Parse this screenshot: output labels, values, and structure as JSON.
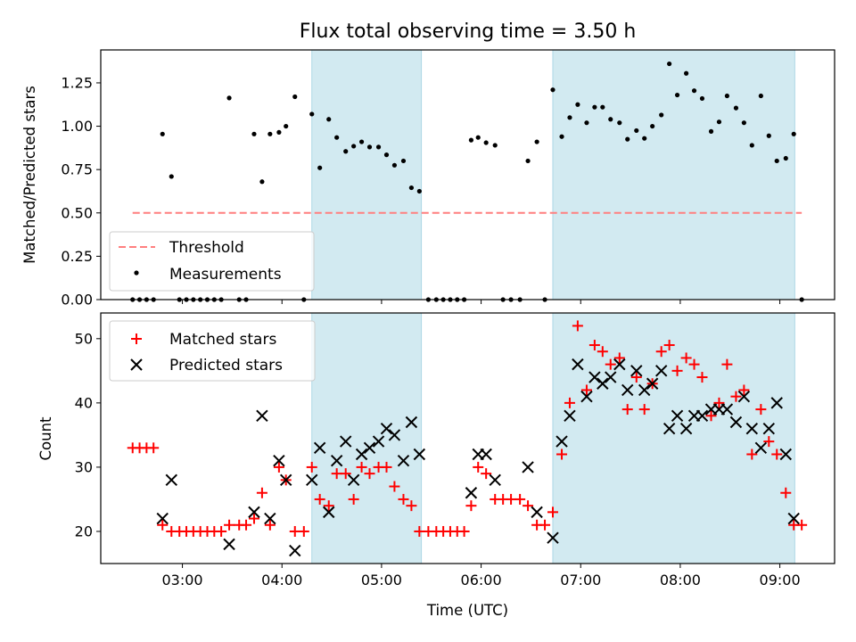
{
  "chart_data": [
    {
      "type": "scatter",
      "title": "Flux total observing time = 3.50 h",
      "xlabel": "",
      "ylabel": "Matched/Predicted stars",
      "xlim": [
        2.18,
        9.55
      ],
      "ylim": [
        0.0,
        1.44
      ],
      "yticks": [
        0.0,
        0.25,
        0.5,
        0.75,
        1.0,
        1.25
      ],
      "ytick_labels": [
        "0.00",
        "0.25",
        "0.50",
        "0.75",
        "1.00",
        "1.25"
      ],
      "xticks": [
        3,
        4,
        5,
        6,
        7,
        8,
        9
      ],
      "show_xtick_labels": false,
      "shaded_regions": [
        [
          4.3,
          5.4
        ],
        [
          6.72,
          9.15
        ]
      ],
      "shade_color": "#add8e6",
      "threshold": {
        "name": "Threshold",
        "value": 0.5,
        "x_range": [
          2.5,
          9.22
        ],
        "color": "#ff7f7f"
      },
      "legend": {
        "position": "lower-left",
        "entries": [
          "Threshold",
          "Measurements"
        ]
      },
      "series": [
        {
          "name": "Measurements",
          "color": "#000000",
          "x": [
            2.5,
            2.57,
            2.64,
            2.71,
            2.8,
            2.89,
            2.97,
            3.04,
            3.11,
            3.18,
            3.25,
            3.32,
            3.39,
            3.47,
            3.57,
            3.64,
            3.72,
            3.8,
            3.88,
            3.97,
            4.04,
            4.13,
            4.22,
            4.3,
            4.38,
            4.47,
            4.55,
            4.64,
            4.72,
            4.8,
            4.88,
            4.97,
            5.05,
            5.13,
            5.22,
            5.3,
            5.38,
            5.47,
            5.55,
            5.62,
            5.69,
            5.76,
            5.83,
            5.9,
            5.97,
            6.05,
            6.14,
            6.22,
            6.3,
            6.39,
            6.47,
            6.56,
            6.64,
            6.72,
            6.81,
            6.89,
            6.97,
            7.06,
            7.14,
            7.22,
            7.3,
            7.39,
            7.47,
            7.56,
            7.64,
            7.72,
            7.81,
            7.89,
            7.97,
            8.06,
            8.14,
            8.22,
            8.31,
            8.39,
            8.47,
            8.56,
            8.64,
            8.72,
            8.81,
            8.89,
            8.97,
            9.06,
            9.14,
            9.22
          ],
          "y": [
            0,
            0,
            0,
            0,
            0.955,
            0.71,
            0,
            0,
            0,
            0,
            0,
            0,
            0,
            1.163,
            0,
            0,
            0.955,
            0.68,
            0.955,
            0.965,
            1.0,
            1.17,
            0,
            1.07,
            0.76,
            1.04,
            0.935,
            0.855,
            0.885,
            0.91,
            0.88,
            0.88,
            0.835,
            0.775,
            0.8,
            0.645,
            0.625,
            0,
            0,
            0,
            0,
            0,
            0,
            0.92,
            0.935,
            0.905,
            0.89,
            0,
            0,
            0,
            0.8,
            0.91,
            0,
            1.21,
            0.94,
            1.05,
            1.125,
            1.02,
            1.11,
            1.11,
            1.04,
            1.02,
            0.925,
            0.975,
            0.93,
            1.0,
            1.065,
            1.36,
            1.18,
            1.305,
            1.205,
            1.16,
            0.97,
            1.025,
            1.175,
            1.105,
            1.02,
            0.89,
            1.175,
            0.945,
            0.8,
            0.815,
            0.955,
            0
          ]
        }
      ]
    },
    {
      "type": "scatter",
      "title": "",
      "xlabel": "Time (UTC)",
      "ylabel": "Count",
      "xlim": [
        2.18,
        9.55
      ],
      "ylim": [
        15.0,
        54.0
      ],
      "yticks": [
        20,
        30,
        40,
        50
      ],
      "ytick_labels": [
        "20",
        "30",
        "40",
        "50"
      ],
      "xticks": [
        3,
        4,
        5,
        6,
        7,
        8,
        9
      ],
      "xtick_labels": [
        "03:00",
        "04:00",
        "05:00",
        "06:00",
        "07:00",
        "08:00",
        "09:00"
      ],
      "shaded_regions": [
        [
          4.3,
          5.4
        ],
        [
          6.72,
          9.15
        ]
      ],
      "shade_color": "#add8e6",
      "legend": {
        "position": "upper-left",
        "entries": [
          "Matched stars",
          "Predicted stars"
        ]
      },
      "series": [
        {
          "name": "Matched stars",
          "marker": "plus",
          "color": "#ff0000",
          "x": [
            2.5,
            2.57,
            2.64,
            2.71,
            2.8,
            2.89,
            2.97,
            3.04,
            3.11,
            3.18,
            3.25,
            3.32,
            3.39,
            3.47,
            3.57,
            3.64,
            3.72,
            3.8,
            3.88,
            3.97,
            4.04,
            4.13,
            4.22,
            4.3,
            4.38,
            4.47,
            4.55,
            4.64,
            4.72,
            4.8,
            4.88,
            4.97,
            5.05,
            5.13,
            5.22,
            5.3,
            5.38,
            5.47,
            5.55,
            5.62,
            5.69,
            5.76,
            5.83,
            5.9,
            5.97,
            6.05,
            6.14,
            6.22,
            6.3,
            6.39,
            6.47,
            6.56,
            6.64,
            6.72,
            6.81,
            6.89,
            6.97,
            7.06,
            7.14,
            7.22,
            7.3,
            7.39,
            7.47,
            7.56,
            7.64,
            7.72,
            7.81,
            7.89,
            7.97,
            8.06,
            8.14,
            8.22,
            8.31,
            8.39,
            8.47,
            8.56,
            8.64,
            8.72,
            8.81,
            8.89,
            8.97,
            9.06,
            9.14,
            9.22
          ],
          "y": [
            33,
            33,
            33,
            33,
            21,
            20,
            20,
            20,
            20,
            20,
            20,
            20,
            20,
            21,
            21,
            21,
            22,
            26,
            21,
            30,
            28,
            20,
            20,
            30,
            25,
            24,
            29,
            29,
            25,
            30,
            29,
            30,
            30,
            27,
            25,
            24,
            20,
            20,
            20,
            20,
            20,
            20,
            20,
            24,
            30,
            29,
            25,
            25,
            25,
            25,
            24,
            21,
            21,
            23,
            32,
            40,
            52,
            42,
            49,
            48,
            46,
            47,
            39,
            44,
            39,
            43,
            48,
            49,
            45,
            47,
            46,
            44,
            38,
            40,
            46,
            41,
            42,
            32,
            39,
            34,
            32,
            26,
            21,
            21
          ]
        },
        {
          "name": "Predicted stars",
          "marker": "x",
          "color": "#000000",
          "x": [
            2.8,
            2.89,
            3.47,
            3.72,
            3.8,
            3.88,
            3.97,
            4.04,
            4.13,
            4.3,
            4.38,
            4.47,
            4.55,
            4.64,
            4.72,
            4.8,
            4.88,
            4.97,
            5.05,
            5.13,
            5.22,
            5.3,
            5.38,
            5.9,
            5.97,
            6.05,
            6.14,
            6.47,
            6.56,
            6.72,
            6.81,
            6.89,
            6.97,
            7.06,
            7.14,
            7.22,
            7.3,
            7.39,
            7.47,
            7.56,
            7.64,
            7.72,
            7.81,
            7.89,
            7.97,
            8.06,
            8.14,
            8.22,
            8.31,
            8.39,
            8.47,
            8.56,
            8.64,
            8.72,
            8.81,
            8.89,
            8.97,
            9.06,
            9.14
          ],
          "y": [
            22,
            28,
            18,
            23,
            38,
            22,
            31,
            28,
            17,
            28,
            33,
            23,
            31,
            34,
            28,
            32,
            33,
            34,
            36,
            35,
            31,
            37,
            32,
            26,
            32,
            32,
            28,
            30,
            23,
            19,
            34,
            38,
            46,
            41,
            44,
            43,
            44,
            46,
            42,
            45,
            42,
            43,
            45,
            36,
            38,
            36,
            38,
            38,
            39,
            39,
            39,
            37,
            41,
            36,
            33,
            36,
            40,
            32,
            22
          ]
        }
      ]
    }
  ]
}
